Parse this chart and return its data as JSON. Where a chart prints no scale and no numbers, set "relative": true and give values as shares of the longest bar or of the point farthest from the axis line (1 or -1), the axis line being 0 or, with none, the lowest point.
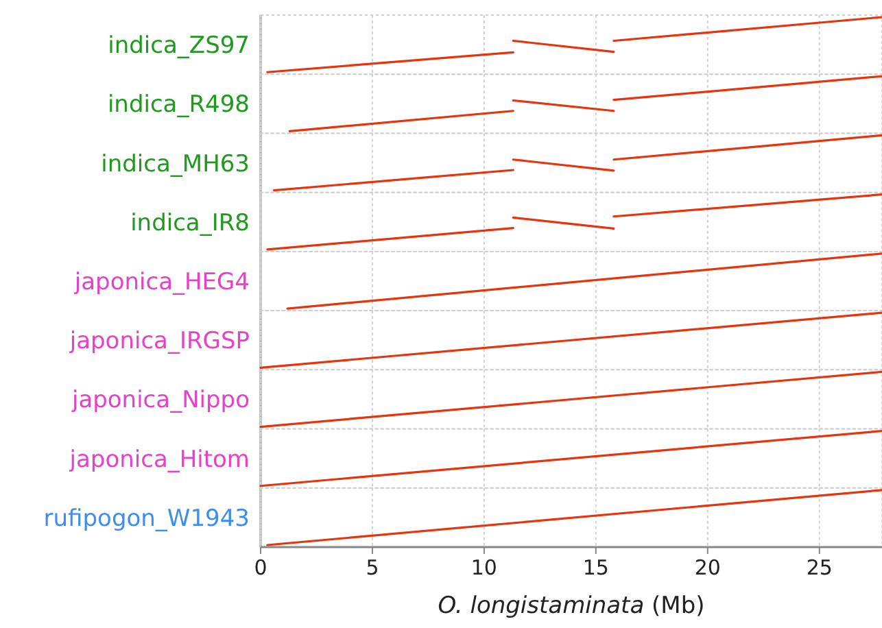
{
  "chart_data": [
    {
      "type": "line",
      "ylabel": "indica_ZS97",
      "relative": true,
      "xlim": [
        0,
        27.8
      ],
      "xticks": [
        0,
        5,
        10,
        15,
        20,
        25
      ],
      "tick_labels": false,
      "grid": "x",
      "series": [
        {
          "color": "#e8340c",
          "x": [
            0.3,
            11.3
          ],
          "values": [
            0,
            0.36
          ]
        },
        {
          "color": "#e8340c",
          "x": [
            11.3,
            15.8
          ],
          "values": [
            0.57,
            0.37
          ]
        },
        {
          "color": "#e8340c",
          "x": [
            15.8,
            27.8
          ],
          "values": [
            0.57,
            1
          ]
        }
      ]
    },
    {
      "type": "line",
      "ylabel": "indica_R498",
      "relative": true,
      "xlim": [
        0,
        27.8
      ],
      "xticks": [
        0,
        5,
        10,
        15,
        20,
        25
      ],
      "tick_labels": false,
      "grid": "x",
      "series": [
        {
          "color": "#e8340c",
          "x": [
            1.3,
            11.3
          ],
          "values": [
            0,
            0.37
          ]
        },
        {
          "color": "#e8340c",
          "x": [
            11.3,
            15.8
          ],
          "values": [
            0.56,
            0.37
          ]
        },
        {
          "color": "#e8340c",
          "x": [
            15.8,
            27.8
          ],
          "values": [
            0.57,
            1
          ]
        }
      ]
    },
    {
      "type": "line",
      "ylabel": "indica_MH63",
      "relative": true,
      "xlim": [
        0,
        27.8
      ],
      "xticks": [
        0,
        5,
        10,
        15,
        20,
        25
      ],
      "tick_labels": false,
      "grid": "x",
      "series": [
        {
          "color": "#e8340c",
          "x": [
            0.6,
            11.3
          ],
          "values": [
            0,
            0.37
          ]
        },
        {
          "color": "#e8340c",
          "x": [
            11.3,
            15.8
          ],
          "values": [
            0.56,
            0.36
          ]
        },
        {
          "color": "#e8340c",
          "x": [
            15.8,
            27.8
          ],
          "values": [
            0.56,
            1
          ]
        }
      ]
    },
    {
      "type": "line",
      "ylabel": "indica_IR8",
      "relative": true,
      "xlim": [
        0,
        27.8
      ],
      "xticks": [
        0,
        5,
        10,
        15,
        20,
        25
      ],
      "tick_labels": false,
      "grid": "x",
      "series": [
        {
          "color": "#e8340c",
          "x": [
            0.3,
            11.3
          ],
          "values": [
            0,
            0.39
          ]
        },
        {
          "color": "#e8340c",
          "x": [
            11.3,
            15.8
          ],
          "values": [
            0.58,
            0.38
          ]
        },
        {
          "color": "#e8340c",
          "x": [
            15.8,
            27.8
          ],
          "values": [
            0.6,
            1
          ]
        }
      ]
    },
    {
      "type": "line",
      "ylabel": "japonica_HEG4",
      "relative": true,
      "xlim": [
        0,
        27.8
      ],
      "xticks": [
        0,
        5,
        10,
        15,
        20,
        25
      ],
      "tick_labels": false,
      "grid": "x",
      "series": [
        {
          "color": "#e8340c",
          "x": [
            1.2,
            27.8
          ],
          "values": [
            0,
            1
          ]
        }
      ]
    },
    {
      "type": "line",
      "ylabel": "japonica_IRGSP",
      "relative": true,
      "xlim": [
        0,
        27.8
      ],
      "xticks": [
        0,
        5,
        10,
        15,
        20,
        25
      ],
      "tick_labels": false,
      "grid": "x",
      "series": [
        {
          "color": "#e8340c",
          "x": [
            0,
            27.8
          ],
          "values": [
            0,
            1
          ]
        }
      ]
    },
    {
      "type": "line",
      "ylabel": "japonica_Nippo",
      "relative": true,
      "xlim": [
        0,
        27.8
      ],
      "xticks": [
        0,
        5,
        10,
        15,
        20,
        25
      ],
      "tick_labels": false,
      "grid": "x",
      "series": [
        {
          "color": "#e8340c",
          "x": [
            0,
            27.8
          ],
          "values": [
            0,
            1
          ]
        }
      ]
    },
    {
      "type": "line",
      "ylabel": "japonica_Hitom",
      "relative": true,
      "xlim": [
        0,
        27.8
      ],
      "xticks": [
        0,
        5,
        10,
        15,
        20,
        25
      ],
      "tick_labels": false,
      "grid": "x",
      "series": [
        {
          "color": "#e8340c",
          "x": [
            0,
            27.8
          ],
          "values": [
            0,
            1
          ]
        }
      ]
    },
    {
      "type": "line",
      "ylabel": "rufipogon_W1943",
      "xlabel": "O. longistaminata (Mb)",
      "relative": true,
      "xlim": [
        0,
        27.8
      ],
      "xticks": [
        0,
        5,
        10,
        15,
        20,
        25
      ],
      "tick_labels": "x",
      "grid": "x",
      "series": [
        {
          "color": "#e8340c",
          "x": [
            0.3,
            27.8
          ],
          "values": [
            0,
            1
          ]
        }
      ]
    }
  ]
}
